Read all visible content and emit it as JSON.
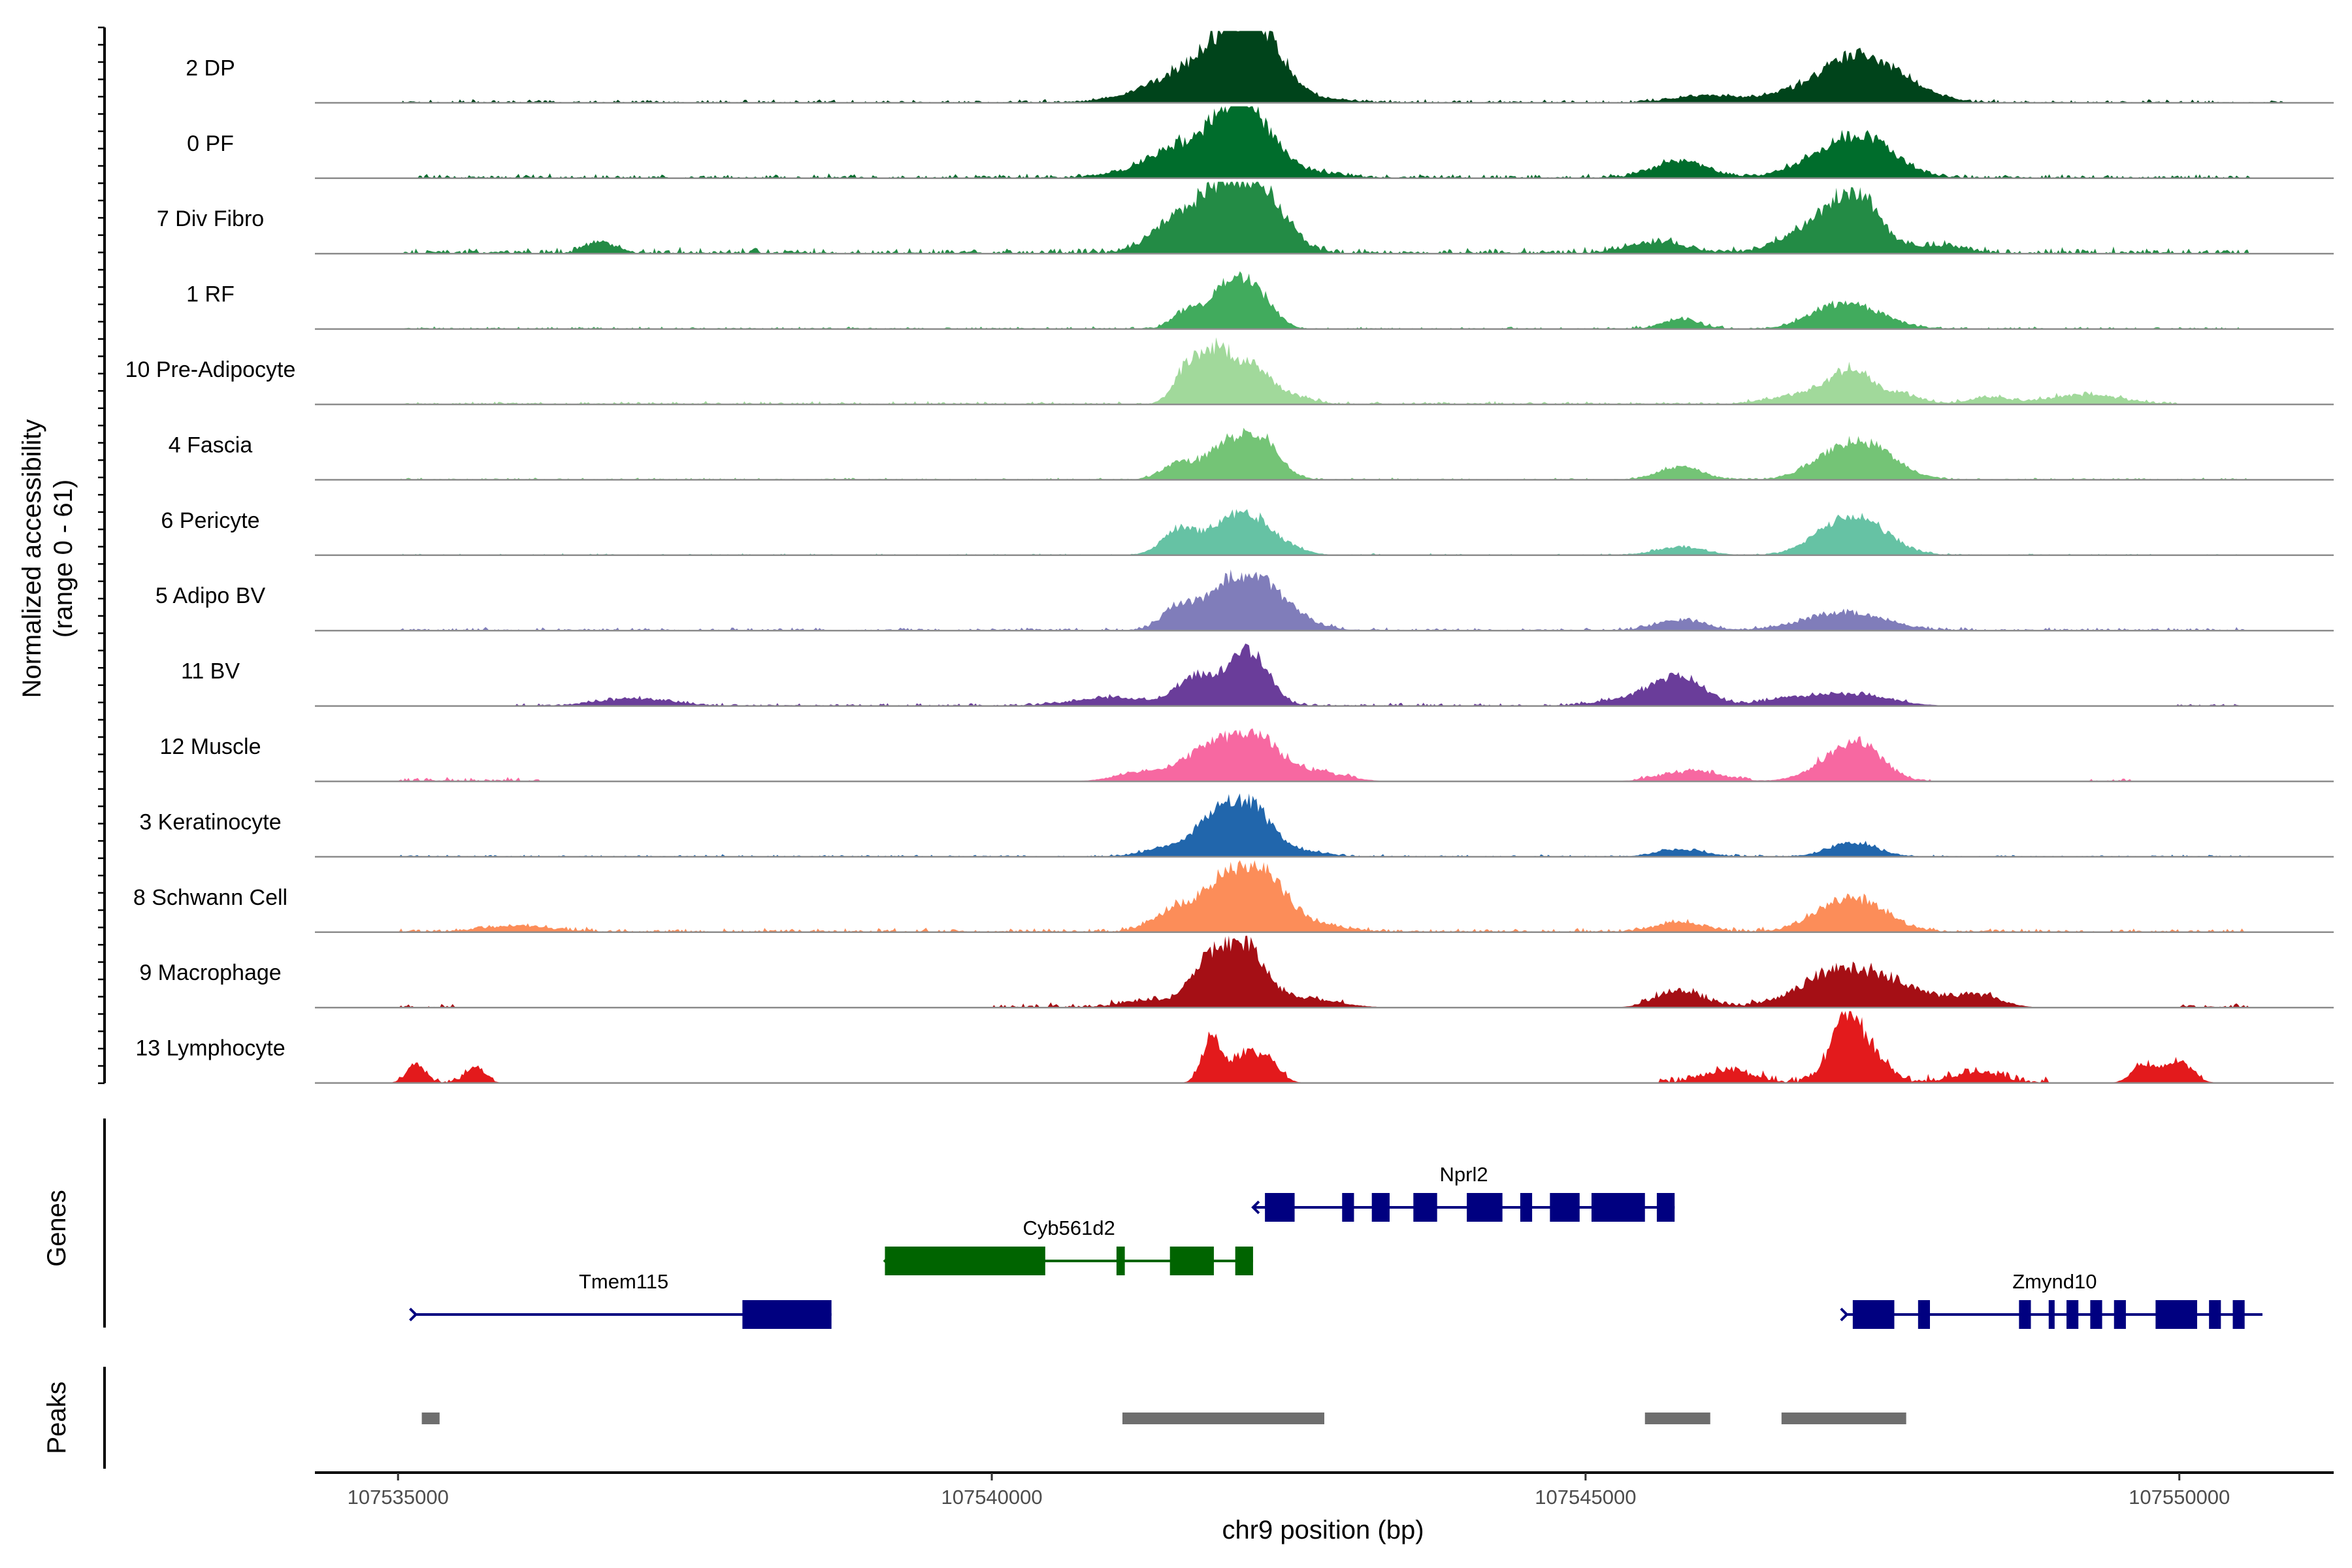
{
  "chart_data": {
    "type": "area",
    "title": "",
    "y_axis_title": "Normalized accessibility\n(range 0 - 61)",
    "y_range": [
      0,
      61
    ],
    "xlabel": "chr9 position (bp)",
    "xlim": [
      107534300,
      107551300
    ],
    "x_ticks": [
      107535000,
      107540000,
      107545000,
      107550000
    ],
    "x_tick_labels": [
      "107535000",
      "107540000",
      "107545000",
      "107550000"
    ],
    "baseline_color": "#8c8c8c",
    "tracks": [
      {
        "name": "2 DP",
        "color": "#00441b",
        "peaks": [
          [
            107541650,
            23,
            260
          ],
          [
            107541950,
            33,
            180
          ],
          [
            107542250,
            55,
            200
          ],
          [
            107541300,
            5,
            300
          ],
          [
            107542600,
            4,
            300
          ],
          [
            107546000,
            6,
            250
          ],
          [
            107546800,
            8,
            300
          ],
          [
            107547300,
            36,
            280
          ],
          [
            107547700,
            10,
            250
          ]
        ],
        "noise": [
          [
            107535000,
            107551000,
            1.5
          ]
        ]
      },
      {
        "name": "0 PF",
        "color": "#006d2c",
        "peaks": [
          [
            107541600,
            22,
            220
          ],
          [
            107541950,
            32,
            170
          ],
          [
            107542200,
            45,
            200
          ],
          [
            107541300,
            6,
            300
          ],
          [
            107542600,
            5,
            300
          ],
          [
            107545800,
            14,
            220
          ],
          [
            107547100,
            20,
            300
          ],
          [
            107547400,
            22,
            250
          ]
        ],
        "noise": [
          [
            107535000,
            107550600,
            2
          ]
        ]
      },
      {
        "name": "7 Div Fibro",
        "color": "#238b45",
        "peaks": [
          [
            107536700,
            10,
            120
          ],
          [
            107541500,
            24,
            180
          ],
          [
            107541800,
            22,
            150
          ],
          [
            107542000,
            38,
            200
          ],
          [
            107542300,
            42,
            200
          ],
          [
            107545600,
            9,
            250
          ],
          [
            107546700,
            8,
            200
          ],
          [
            107547000,
            20,
            200
          ],
          [
            107547300,
            42,
            200
          ],
          [
            107548000,
            6,
            200
          ]
        ],
        "noise": [
          [
            107535000,
            107550600,
            3
          ]
        ]
      },
      {
        "name": "1 RF",
        "color": "#41ab5d",
        "peaks": [
          [
            107541650,
            16,
            120
          ],
          [
            107541950,
            28,
            130
          ],
          [
            107542200,
            35,
            150
          ],
          [
            107545800,
            8,
            150
          ],
          [
            107547000,
            9,
            200
          ],
          [
            107547300,
            17,
            250
          ]
        ],
        "noise": [
          [
            107535000,
            107550600,
            1.2
          ]
        ]
      },
      {
        "name": "10 Pre-Adipocyte",
        "color": "#a1d99b",
        "peaks": [
          [
            107541650,
            30,
            110
          ],
          [
            107541900,
            42,
            130
          ],
          [
            107542200,
            31,
            150
          ],
          [
            107542550,
            6,
            150
          ],
          [
            107546700,
            6,
            200
          ],
          [
            107547000,
            10,
            150
          ],
          [
            107547250,
            25,
            150
          ],
          [
            107547600,
            9,
            200
          ],
          [
            107548400,
            6,
            150
          ],
          [
            107549200,
            8,
            300
          ]
        ],
        "noise": [
          [
            107535000,
            107550000,
            1.5
          ]
        ]
      },
      {
        "name": "4 Fascia",
        "color": "#74c476",
        "peaks": [
          [
            107541600,
            15,
            150
          ],
          [
            107541950,
            26,
            130
          ],
          [
            107542250,
            37,
            160
          ],
          [
            107545800,
            11,
            180
          ],
          [
            107547000,
            10,
            200
          ],
          [
            107547350,
            30,
            250
          ]
        ],
        "noise": [
          [
            107535000,
            107550600,
            1
          ]
        ]
      },
      {
        "name": "6 Pericyte",
        "color": "#66c2a4",
        "peaks": [
          [
            107541600,
            24,
            150
          ],
          [
            107541950,
            20,
            130
          ],
          [
            107542200,
            30,
            160
          ],
          [
            107542500,
            6,
            150
          ],
          [
            107545800,
            7,
            200
          ],
          [
            107547000,
            8,
            200
          ],
          [
            107547300,
            30,
            250
          ]
        ],
        "noise": [
          [
            107535000,
            107550600,
            0.8
          ]
        ]
      },
      {
        "name": "5 Adipo BV",
        "color": "#807dba",
        "peaks": [
          [
            107541600,
            22,
            150
          ],
          [
            107541950,
            26,
            150
          ],
          [
            107542250,
            40,
            200
          ],
          [
            107542600,
            6,
            200
          ],
          [
            107545800,
            9,
            200
          ],
          [
            107547000,
            7,
            300
          ],
          [
            107547300,
            10,
            300
          ]
        ],
        "noise": [
          [
            107535000,
            107550600,
            1.5
          ]
        ]
      },
      {
        "name": "11 BV",
        "color": "#6a3d9a",
        "peaks": [
          [
            107537000,
            6,
            300
          ],
          [
            107541000,
            7,
            300
          ],
          [
            107541700,
            23,
            150
          ],
          [
            107542000,
            16,
            150
          ],
          [
            107542200,
            40,
            150
          ],
          [
            107545800,
            20,
            200
          ],
          [
            107545500,
            8,
            300
          ],
          [
            107546800,
            6,
            300
          ],
          [
            107547300,
            8,
            300
          ]
        ],
        "noise": [
          [
            107536000,
            107547700,
            1.5
          ],
          [
            107549900,
            107550600,
            1.2
          ]
        ]
      },
      {
        "name": "12 Muscle",
        "color": "#f768a1",
        "peaks": [
          [
            107541200,
            6,
            200
          ],
          [
            107541600,
            10,
            200
          ],
          [
            107541900,
            27,
            180
          ],
          [
            107542250,
            33,
            180
          ],
          [
            107542700,
            8,
            250
          ],
          [
            107545900,
            8,
            250
          ],
          [
            107547000,
            9,
            200
          ],
          [
            107547300,
            30,
            200
          ]
        ],
        "noise": [
          [
            107535000,
            107536200,
            2
          ],
          [
            107541000,
            107543100,
            2
          ],
          [
            107545400,
            107546400,
            2
          ],
          [
            107546900,
            107547900,
            2
          ],
          [
            107549200,
            107549600,
            1.5
          ]
        ]
      },
      {
        "name": "3 Keratinocyte",
        "color": "#2166ac",
        "peaks": [
          [
            107541500,
            8,
            200
          ],
          [
            107541900,
            36,
            160
          ],
          [
            107542200,
            38,
            160
          ],
          [
            107542600,
            5,
            200
          ],
          [
            107545800,
            6,
            200
          ],
          [
            107547250,
            12,
            200
          ]
        ],
        "noise": [
          [
            107535000,
            107550600,
            1
          ]
        ]
      },
      {
        "name": "8 Schwann Cell",
        "color": "#fc8d59",
        "peaks": [
          [
            107536000,
            5,
            300
          ],
          [
            107541600,
            22,
            200
          ],
          [
            107541950,
            30,
            150
          ],
          [
            107542250,
            48,
            200
          ],
          [
            107542600,
            7,
            300
          ],
          [
            107545800,
            8,
            200
          ],
          [
            107547000,
            9,
            200
          ],
          [
            107547300,
            25,
            250
          ]
        ],
        "noise": [
          [
            107535000,
            107550600,
            2
          ]
        ]
      },
      {
        "name": "9 Macrophage",
        "color": "#a50f15",
        "peaks": [
          [
            107541300,
            6,
            200
          ],
          [
            107541800,
            30,
            150
          ],
          [
            107542000,
            28,
            150
          ],
          [
            107542200,
            33,
            150
          ],
          [
            107542600,
            7,
            300
          ],
          [
            107545800,
            13,
            200
          ],
          [
            107547000,
            15,
            300
          ],
          [
            107547300,
            20,
            300
          ],
          [
            107547700,
            10,
            250
          ],
          [
            107548300,
            10,
            200
          ]
        ],
        "noise": [
          [
            107535000,
            107535500,
            2
          ],
          [
            107540000,
            107543000,
            2.5
          ],
          [
            107545400,
            107548500,
            3
          ],
          [
            107550000,
            107550600,
            2
          ]
        ]
      },
      {
        "name": "13 Lymphocyte",
        "color": "#e31a1c",
        "peaks": [
          [
            107535150,
            14,
            80
          ],
          [
            107535650,
            14,
            80
          ],
          [
            107541850,
            37,
            80
          ],
          [
            107542150,
            24,
            120
          ],
          [
            107542350,
            12,
            100
          ],
          [
            107547200,
            57,
            130
          ],
          [
            107547450,
            18,
            120
          ],
          [
            107546200,
            10,
            200
          ],
          [
            107548300,
            8,
            200
          ],
          [
            107549700,
            15,
            100
          ],
          [
            107550000,
            18,
            110
          ]
        ],
        "noise": [
          [
            107535000,
            107535800,
            2
          ],
          [
            107541700,
            107542500,
            3
          ],
          [
            107545600,
            107548900,
            4
          ],
          [
            107549600,
            107550200,
            3
          ]
        ]
      }
    ],
    "genes": [
      {
        "name": "Tmem115",
        "strand": "+",
        "color": "#000080",
        "row": 3,
        "start": 107535150,
        "end": 107538650,
        "exons": [
          [
            107537900,
            107538650
          ]
        ]
      },
      {
        "name": "Cyb561d2",
        "strand": "-",
        "color": "#006400",
        "row": 2,
        "start": 107539100,
        "end": 107542200,
        "exons": [
          [
            107539100,
            107540450
          ],
          [
            107541050,
            107541120
          ],
          [
            107541500,
            107541870
          ],
          [
            107542050,
            107542200
          ]
        ]
      },
      {
        "name": "Nprl2",
        "strand": "-",
        "color": "#000080",
        "row": 1,
        "start": 107542200,
        "end": 107545750,
        "exons": [
          [
            107542300,
            107542550
          ],
          [
            107542950,
            107543050
          ],
          [
            107543200,
            107543350
          ],
          [
            107543550,
            107543750
          ],
          [
            107544000,
            107544300
          ],
          [
            107544450,
            107544550
          ],
          [
            107544700,
            107544950
          ],
          [
            107545050,
            107545500
          ],
          [
            107545600,
            107545750
          ]
        ]
      },
      {
        "name": "Zmynd10",
        "strand": "+",
        "color": "#000080",
        "row": 3,
        "start": 107547200,
        "end": 107550700,
        "exons": [
          [
            107547250,
            107547600
          ],
          [
            107547800,
            107547900
          ],
          [
            107548650,
            107548750
          ],
          [
            107548900,
            107548950
          ],
          [
            107549050,
            107549150
          ],
          [
            107549250,
            107549350
          ],
          [
            107549450,
            107549550
          ],
          [
            107549800,
            107550150
          ],
          [
            107550250,
            107550350
          ],
          [
            107550450,
            107550550
          ]
        ]
      }
    ],
    "gene_axis_title": "Genes",
    "peaks_axis_title": "Peaks",
    "peaks_color": "#6e6e6e",
    "peak_regions": [
      [
        107535200,
        107535350
      ],
      [
        107541100,
        107542800
      ],
      [
        107545500,
        107546050
      ],
      [
        107546650,
        107547700
      ]
    ]
  }
}
